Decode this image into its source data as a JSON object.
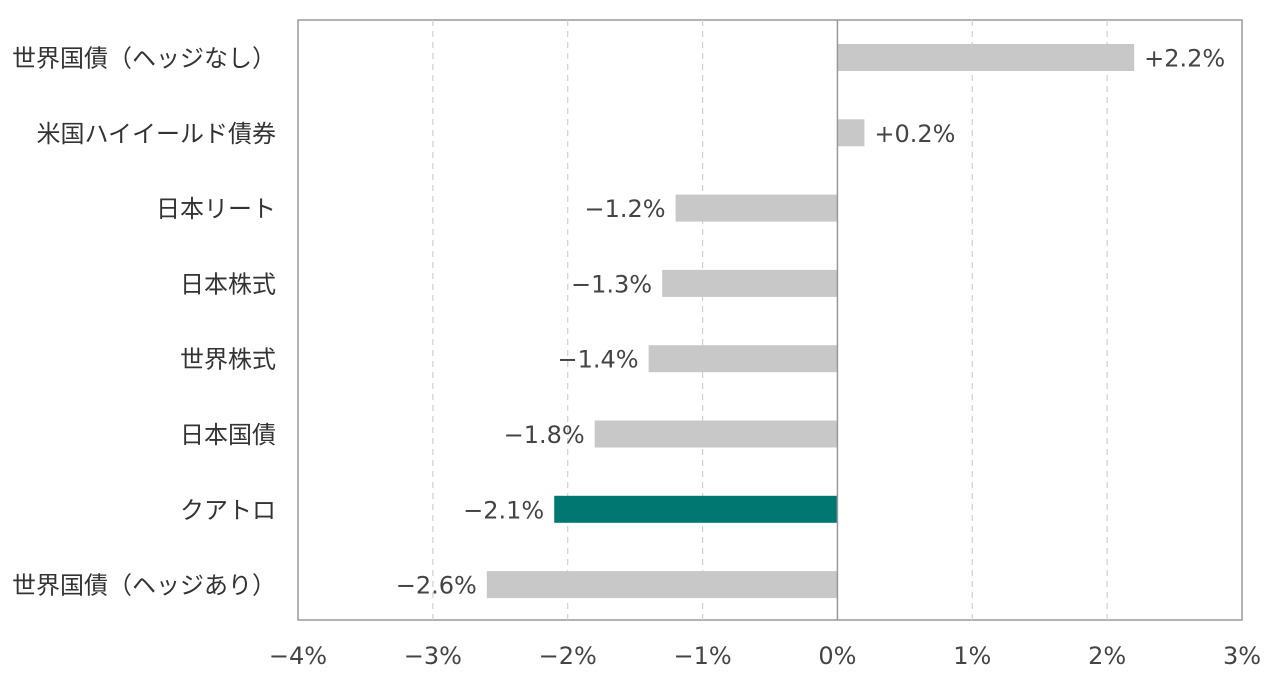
{
  "chart_data": {
    "type": "bar",
    "orientation": "horizontal",
    "categories": [
      "世界国債（ヘッジなし）",
      "米国ハイイールド債券",
      "日本リート",
      "日本株式",
      "世界株式",
      "日本国債",
      "クアトロ",
      "世界国債（ヘッジあり）"
    ],
    "values": [
      2.2,
      0.2,
      -1.2,
      -1.3,
      -1.4,
      -1.8,
      -2.1,
      -2.6
    ],
    "value_labels": [
      "+2.2%",
      "+0.2%",
      "−1.2%",
      "−1.3%",
      "−1.4%",
      "−1.8%",
      "−2.1%",
      "−2.6%"
    ],
    "highlight_index": 6,
    "xlim": [
      -4,
      3
    ],
    "x_ticks": [
      -4,
      -3,
      -2,
      -1,
      0,
      1,
      2,
      3
    ],
    "x_tick_labels": [
      "−4%",
      "−3%",
      "−2%",
      "−1%",
      "0%",
      "1%",
      "2%",
      "3%"
    ],
    "grid": "vertical dashed",
    "colors": {
      "bar": "#c8c8c8",
      "highlight": "#007872",
      "grid": "#d0d0d0",
      "axis": "#999999",
      "label": "#444444"
    }
  }
}
